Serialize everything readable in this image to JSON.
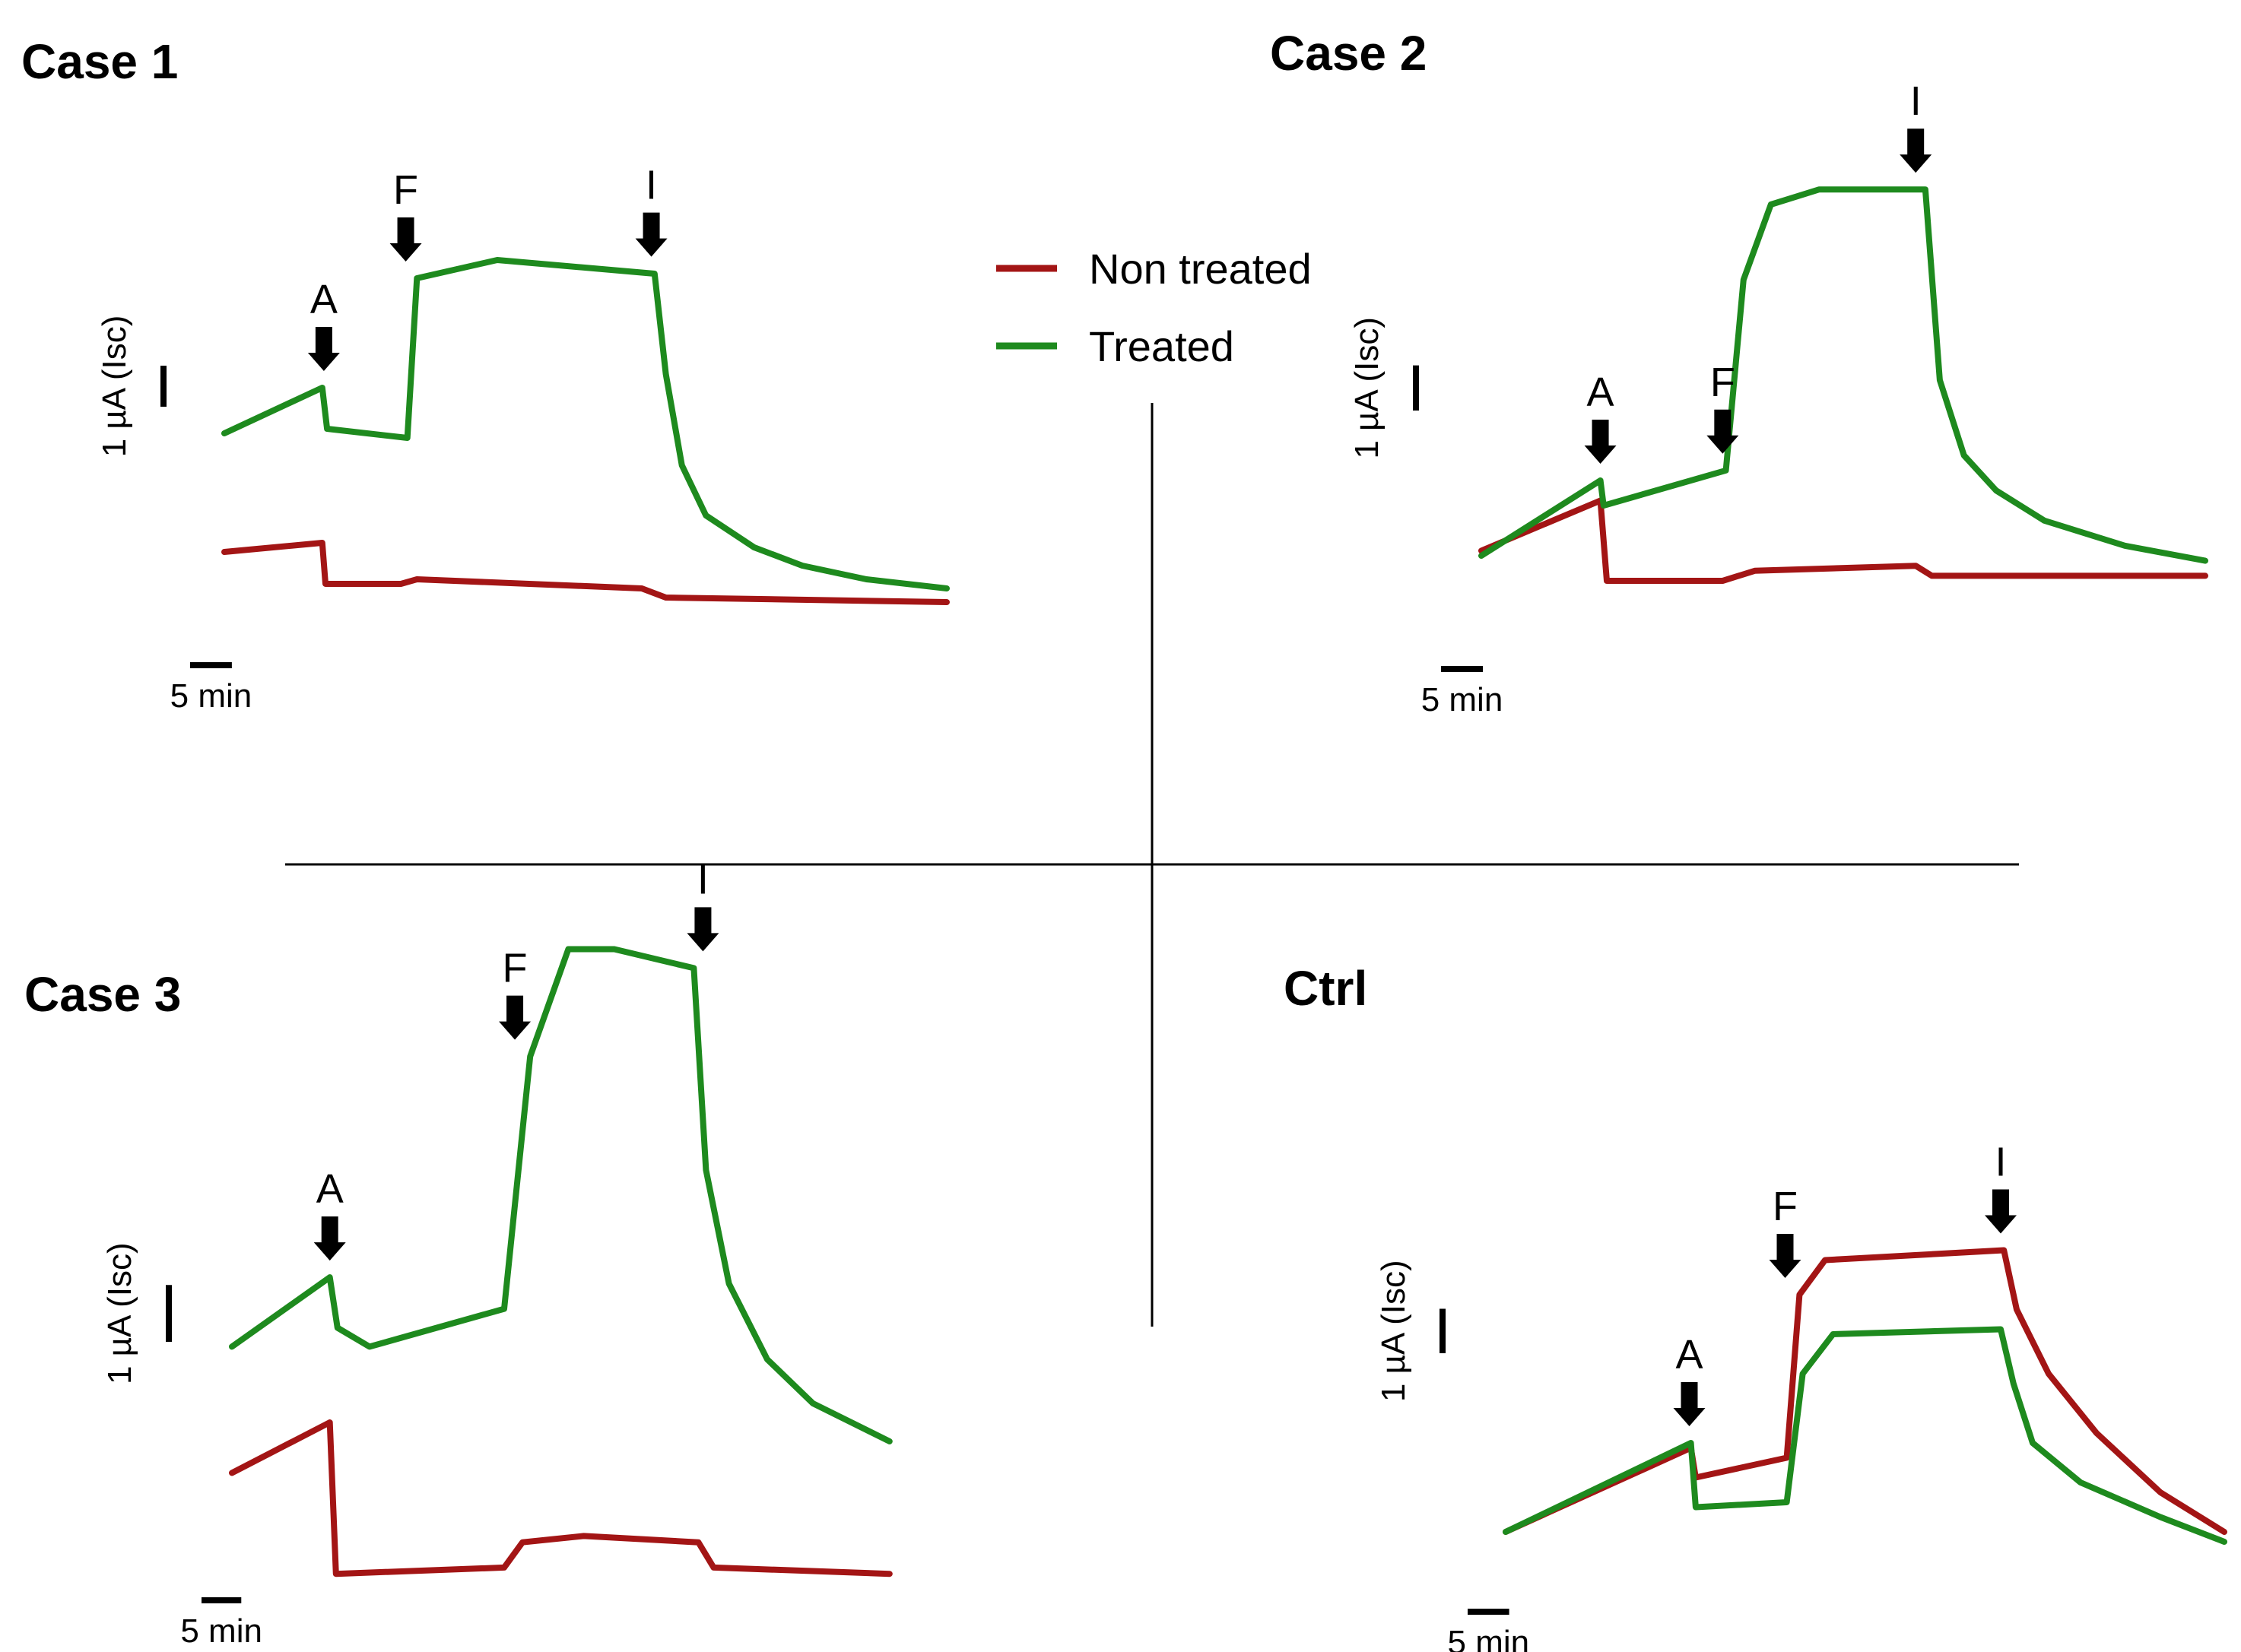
{
  "legend": {
    "items": [
      {
        "label": "Non treated",
        "color": "#a31515"
      },
      {
        "label": "Treated",
        "color": "#1e8a1e"
      }
    ]
  },
  "chart_data": [
    {
      "type": "line",
      "title": "Case 1",
      "x_unit": "min",
      "y_unit": "µA (Isc)",
      "xlim": [
        0,
        45
      ],
      "ylim": [
        0,
        10
      ],
      "scale_bars": {
        "y_label": "1 µA (Isc)",
        "y_value": 1,
        "x_label": "5 min",
        "x_value": 5
      },
      "markers": [
        {
          "label": "A",
          "x": 6.2
        },
        {
          "label": "F",
          "x": 11.3
        },
        {
          "label": "I",
          "x": 26.6
        }
      ],
      "series": [
        {
          "name": "Non treated",
          "x": [
            0,
            6.1,
            6.3,
            11.0,
            12.0,
            26.0,
            27.5,
            45
          ],
          "y": [
            1.9,
            2.1,
            1.2,
            1.2,
            1.3,
            1.1,
            0.9,
            0.8
          ]
        },
        {
          "name": "Treated",
          "x": [
            0,
            6.1,
            6.4,
            11.4,
            12.0,
            17.0,
            26.8,
            27.5,
            28.5,
            30,
            33,
            36,
            40,
            45
          ],
          "y": [
            4.5,
            5.5,
            4.6,
            4.4,
            7.9,
            8.3,
            8.0,
            5.8,
            3.8,
            2.7,
            2.0,
            1.6,
            1.3,
            1.1
          ]
        }
      ]
    },
    {
      "type": "line",
      "title": "Case 2",
      "x_unit": "min",
      "y_unit": "µA (Isc)",
      "xlim": [
        0,
        45
      ],
      "ylim": [
        0,
        10
      ],
      "scale_bars": {
        "y_label": "1 µA (Isc)",
        "y_value": 1,
        "x_label": "5 min",
        "x_value": 5
      },
      "markers": [
        {
          "label": "A",
          "x": 7.4
        },
        {
          "label": "F",
          "x": 15.0
        },
        {
          "label": "I",
          "x": 27.0
        }
      ],
      "series": [
        {
          "name": "Non treated",
          "x": [
            0,
            7.4,
            7.8,
            15.0,
            17.0,
            27.0,
            28.0,
            45
          ],
          "y": [
            1.6,
            2.6,
            1.0,
            1.0,
            1.2,
            1.3,
            1.1,
            1.1
          ]
        },
        {
          "name": "Treated",
          "x": [
            0,
            7.4,
            7.6,
            15.2,
            16.3,
            18.0,
            21.0,
            27.6,
            28.5,
            30,
            32,
            35,
            40,
            45
          ],
          "y": [
            1.5,
            3.0,
            2.5,
            3.2,
            7.0,
            8.5,
            8.8,
            8.8,
            5.0,
            3.5,
            2.8,
            2.2,
            1.7,
            1.4
          ]
        }
      ]
    },
    {
      "type": "line",
      "title": "Case 3",
      "x_unit": "min",
      "y_unit": "µA (Isc)",
      "xlim": [
        0,
        45
      ],
      "ylim": [
        0,
        10
      ],
      "scale_bars": {
        "y_label": "1 µA (Isc)",
        "y_value": 1,
        "x_label": "5 min",
        "x_value": 5
      },
      "markers": [
        {
          "label": "A",
          "x": 6.4
        },
        {
          "label": "F",
          "x": 18.5
        },
        {
          "label": "I",
          "x": 30.8
        }
      ],
      "series": [
        {
          "name": "Non treated",
          "x": [
            0,
            6.4,
            6.8,
            17.8,
            19.0,
            23.0,
            30.5,
            31.5,
            43
          ],
          "y": [
            2.2,
            3.0,
            0.6,
            0.7,
            1.1,
            1.2,
            1.1,
            0.7,
            0.6
          ]
        },
        {
          "name": "Treated",
          "x": [
            0,
            6.4,
            6.9,
            9.0,
            17.8,
            19.5,
            22.0,
            25.0,
            30.2,
            31.0,
            32.5,
            35,
            38,
            43
          ],
          "y": [
            4.2,
            5.3,
            4.5,
            4.2,
            4.8,
            8.8,
            10.5,
            10.5,
            10.2,
            7.0,
            5.2,
            4.0,
            3.3,
            2.7
          ]
        }
      ]
    },
    {
      "type": "line",
      "title": "Ctrl",
      "x_unit": "min",
      "y_unit": "µA (Isc)",
      "xlim": [
        0,
        45
      ],
      "ylim": [
        0,
        10
      ],
      "scale_bars": {
        "y_label": "1 µA (Isc)",
        "y_value": 1,
        "x_label": "5 min",
        "x_value": 5
      },
      "markers": [
        {
          "label": "A",
          "x": 11.5
        },
        {
          "label": "F",
          "x": 17.5
        },
        {
          "label": "I",
          "x": 31.0
        }
      ],
      "series": [
        {
          "name": "Non treated",
          "x": [
            0,
            11.6,
            11.9,
            17.6,
            18.4,
            20.0,
            31.2,
            32.0,
            34,
            37,
            41,
            45
          ],
          "y": [
            1.0,
            2.7,
            2.1,
            2.5,
            5.8,
            6.5,
            6.7,
            5.5,
            4.2,
            3.0,
            1.8,
            1.0
          ]
        },
        {
          "name": "Treated",
          "x": [
            0,
            11.6,
            11.9,
            17.6,
            18.6,
            20.5,
            31.0,
            31.8,
            33,
            36,
            41,
            45
          ],
          "y": [
            1.0,
            2.8,
            1.5,
            1.6,
            4.2,
            5.0,
            5.1,
            4.0,
            2.8,
            2.0,
            1.3,
            0.8
          ]
        }
      ]
    }
  ]
}
